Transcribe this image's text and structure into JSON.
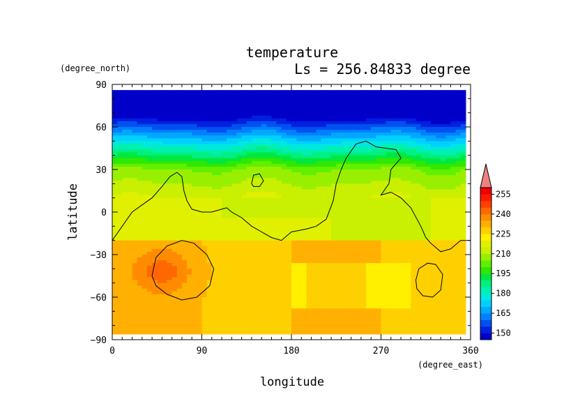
{
  "chart_data": {
    "type": "heatmap",
    "title": "temperature",
    "subtitle": "Ls = 256.84833 degree",
    "xlabel": "longitude",
    "ylabel": "latitude",
    "x_units": "(degree_east)",
    "y_units": "(degree_north)",
    "xlim": [
      0,
      360
    ],
    "ylim": [
      -90,
      90
    ],
    "data_lat_range": [
      -86,
      86
    ],
    "x_ticks": [
      0,
      90,
      180,
      270,
      360
    ],
    "y_ticks": [
      90,
      60,
      30,
      0,
      -30,
      -60,
      -90
    ],
    "colorbar": {
      "levels": [
        145,
        150,
        155,
        160,
        165,
        170,
        175,
        180,
        185,
        190,
        195,
        200,
        205,
        210,
        215,
        220,
        225,
        230,
        235,
        240,
        245,
        250,
        255,
        260
      ],
      "tick_labels": [
        150,
        165,
        180,
        195,
        210,
        225,
        240,
        255
      ],
      "colors": [
        "#0000c8",
        "#0020e0",
        "#0050f0",
        "#0080ff",
        "#00a8ff",
        "#00d0ff",
        "#00e8e0",
        "#00f0b0",
        "#00f080",
        "#00e840",
        "#30e800",
        "#60f000",
        "#98f000",
        "#c8f000",
        "#e0f000",
        "#fff000",
        "#ffd000",
        "#ffb000",
        "#ff8c00",
        "#ff6800",
        "#ff4000",
        "#ff1800",
        "#f00000",
        "#f08080"
      ],
      "extend": "max"
    },
    "fields": {
      "polar_north_lat": 68,
      "polar_south_lat": -86,
      "equator_band_center": 0,
      "southern_max_region": {
        "lon_center": 50,
        "lat_center": -42,
        "value_approx": 240
      },
      "southern_band_value_approx": 230
    },
    "contours": [
      {
        "name": "topography-contour-1",
        "points": [
          [
            0,
            -20
          ],
          [
            10,
            -10
          ],
          [
            20,
            0
          ],
          [
            30,
            5
          ],
          [
            40,
            10
          ],
          [
            50,
            18
          ],
          [
            58,
            25
          ],
          [
            65,
            28
          ],
          [
            70,
            25
          ],
          [
            72,
            15
          ],
          [
            75,
            8
          ],
          [
            80,
            2
          ],
          [
            90,
            0
          ],
          [
            100,
            0
          ],
          [
            110,
            2
          ],
          [
            115,
            3
          ],
          [
            120,
            0
          ],
          [
            130,
            -4
          ],
          [
            140,
            -10
          ],
          [
            150,
            -14
          ],
          [
            160,
            -18
          ],
          [
            170,
            -20
          ],
          [
            180,
            -14
          ],
          [
            195,
            -12
          ],
          [
            205,
            -10
          ],
          [
            215,
            -5
          ],
          [
            222,
            8
          ],
          [
            225,
            20
          ],
          [
            230,
            30
          ],
          [
            235,
            38
          ],
          [
            245,
            48
          ],
          [
            255,
            50
          ],
          [
            265,
            46
          ],
          [
            275,
            45
          ],
          [
            285,
            44
          ],
          [
            290,
            38
          ],
          [
            280,
            30
          ],
          [
            278,
            20
          ],
          [
            270,
            12
          ],
          [
            280,
            14
          ],
          [
            290,
            10
          ],
          [
            300,
            3
          ],
          [
            310,
            -10
          ],
          [
            315,
            -18
          ],
          [
            320,
            -22
          ],
          [
            330,
            -28
          ],
          [
            340,
            -26
          ],
          [
            350,
            -20
          ],
          [
            360,
            -20
          ]
        ]
      },
      {
        "name": "topography-contour-2",
        "points": [
          [
            140,
            20
          ],
          [
            142,
            26
          ],
          [
            148,
            27
          ],
          [
            152,
            22
          ],
          [
            148,
            18
          ],
          [
            142,
            18
          ],
          [
            140,
            20
          ]
        ]
      },
      {
        "name": "southern-basin-contour",
        "points": [
          [
            40,
            -45
          ],
          [
            44,
            -32
          ],
          [
            55,
            -24
          ],
          [
            70,
            -20
          ],
          [
            82,
            -22
          ],
          [
            95,
            -30
          ],
          [
            102,
            -40
          ],
          [
            98,
            -52
          ],
          [
            85,
            -60
          ],
          [
            70,
            -62
          ],
          [
            55,
            -58
          ],
          [
            44,
            -52
          ],
          [
            40,
            -45
          ]
        ]
      },
      {
        "name": "southern-crater-contour",
        "points": [
          [
            305,
            -48
          ],
          [
            308,
            -40
          ],
          [
            317,
            -36
          ],
          [
            325,
            -37
          ],
          [
            332,
            -44
          ],
          [
            330,
            -55
          ],
          [
            322,
            -60
          ],
          [
            312,
            -59
          ],
          [
            306,
            -54
          ],
          [
            305,
            -48
          ]
        ]
      }
    ]
  }
}
